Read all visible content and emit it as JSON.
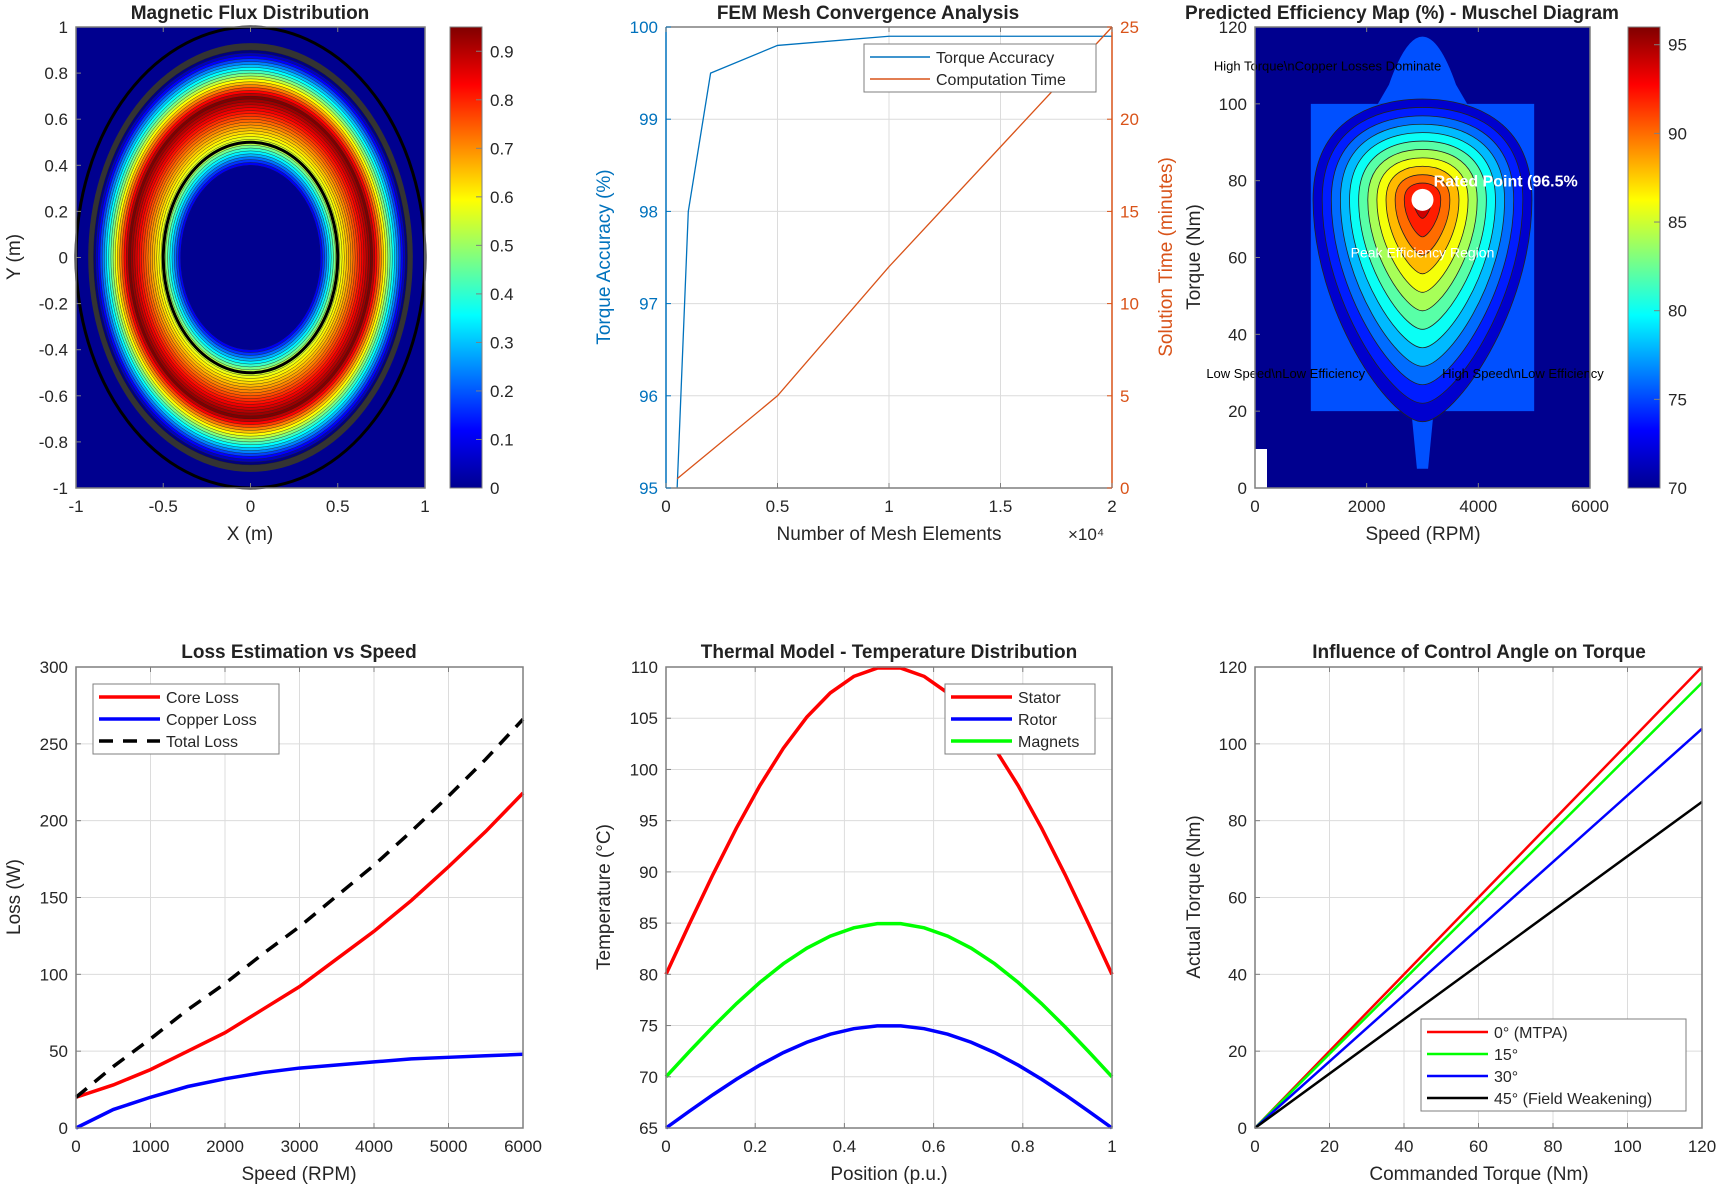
{
  "figure": {
    "panels": [
      {
        "id": "flux",
        "title": "Magnetic Flux Distribution"
      },
      {
        "id": "mesh",
        "title": "FEM Mesh Convergence Analysis"
      },
      {
        "id": "eff",
        "title": "Predicted Efficiency Map (%) - Muschel Diagram"
      },
      {
        "id": "loss",
        "title": "Loss Estimation vs Speed"
      },
      {
        "id": "thermal",
        "title": "Thermal Model - Temperature Distribution"
      },
      {
        "id": "ctrl",
        "title": "Influence of Control Angle on Torque"
      }
    ]
  },
  "chart_data": [
    {
      "type": "heatmap",
      "title": "Magnetic Flux Distribution",
      "xlabel": "X (m)",
      "ylabel": "Y (m)",
      "xlim": [
        -1,
        1
      ],
      "ylim": [
        -1,
        1
      ],
      "xticks": [
        "-1",
        "-0.5",
        "0",
        "0.5",
        "1"
      ],
      "yticks": [
        "-1",
        "-0.8",
        "-0.6",
        "-0.4",
        "-0.2",
        "0",
        "0.2",
        "0.4",
        "0.6",
        "0.8",
        "1"
      ],
      "colorbar": {
        "range": [
          0,
          0.95
        ],
        "ticks": [
          "0",
          "0.1",
          "0.2",
          "0.3",
          "0.4",
          "0.5",
          "0.6",
          "0.7",
          "0.8",
          "0.9"
        ],
        "colormap": "jet"
      },
      "description": "Annular flux ring peaking (~0.95) between r=0.5 and r≈0.9, zero inside r≈0.4 and outside r≈0.9",
      "overlay_circles_radius": [
        0.5,
        1.0
      ],
      "ring_inner_radius": 0.5,
      "ring_peak_radius": 0.7,
      "ring_outer_radius": 0.9
    },
    {
      "type": "line",
      "title": "FEM Mesh Convergence Analysis",
      "xlabel": "Number of Mesh Elements",
      "x_multiplier_label": "×10⁴",
      "ylabel_left": "Torque Accuracy (%)",
      "ylabel_right": "Solution Time (minutes)",
      "xlim": [
        0,
        20000
      ],
      "ylim_left": [
        95,
        100
      ],
      "ylim_right": [
        0,
        25
      ],
      "xticks": [
        "0",
        "0.5",
        "1",
        "1.5",
        "2"
      ],
      "yticks_left": [
        "95",
        "96",
        "97",
        "98",
        "99",
        "100"
      ],
      "yticks_right": [
        "0",
        "5",
        "10",
        "15",
        "20",
        "25"
      ],
      "x": [
        500,
        1000,
        2000,
        5000,
        10000,
        20000
      ],
      "series": [
        {
          "name": "Torque Accuracy",
          "axis": "left",
          "color": "#0072BD",
          "values": [
            95.0,
            98.0,
            99.5,
            99.8,
            99.9,
            99.9
          ]
        },
        {
          "name": "Computation Time",
          "axis": "right",
          "color": "#D95319",
          "values": [
            0.5,
            1.0,
            2.0,
            5.0,
            12.0,
            25.0
          ]
        }
      ],
      "legend": "top-right",
      "grid": true
    },
    {
      "type": "heatmap",
      "title": "Predicted Efficiency Map (%) - Muschel Diagram",
      "xlabel": "Speed (RPM)",
      "ylabel": "Torque (Nm)",
      "xlim": [
        0,
        6000
      ],
      "ylim": [
        0,
        120
      ],
      "xticks": [
        "0",
        "2000",
        "4000",
        "6000"
      ],
      "yticks": [
        "0",
        "20",
        "40",
        "60",
        "80",
        "100",
        "120"
      ],
      "colorbar": {
        "range": [
          70,
          96
        ],
        "ticks": [
          "70",
          "75",
          "80",
          "85",
          "90",
          "95"
        ],
        "colormap": "jet"
      },
      "peak": {
        "speed": 3000,
        "torque": 75,
        "efficiency": 96.5
      },
      "annotations": [
        {
          "text": "High Torque\\nCopper Losses Dominate",
          "speed": 1500,
          "torque": 110,
          "color": "#000000"
        },
        {
          "text": "Rated Point (96.5%",
          "speed": 3200,
          "torque": 80,
          "color": "#ffffff",
          "bold": true
        },
        {
          "text": "Peak Efficiency Region",
          "speed": 3000,
          "torque": 60,
          "color": "#ffffff"
        },
        {
          "text": "Low Speed\\nLow Efficiency",
          "speed": 500,
          "torque": 30,
          "color": "#000000"
        },
        {
          "text": "High Speed\\nLow Efficiency",
          "speed": 4500,
          "torque": 30,
          "color": "#000000"
        }
      ]
    },
    {
      "type": "line",
      "title": "Loss Estimation vs Speed",
      "xlabel": "Speed (RPM)",
      "ylabel": "Loss (W)",
      "xlim": [
        0,
        6000
      ],
      "ylim": [
        0,
        300
      ],
      "xticks": [
        "0",
        "1000",
        "2000",
        "3000",
        "4000",
        "5000",
        "6000"
      ],
      "yticks": [
        "0",
        "50",
        "100",
        "150",
        "200",
        "250",
        "300"
      ],
      "x": [
        0,
        500,
        1000,
        1500,
        2000,
        2500,
        3000,
        3500,
        4000,
        4500,
        5000,
        5500,
        6000
      ],
      "series": [
        {
          "name": "Core Loss",
          "color": "#FF0000",
          "style": "solid",
          "values": [
            20,
            28,
            38,
            50,
            62,
            77,
            92,
            110,
            128,
            148,
            170,
            193,
            218
          ]
        },
        {
          "name": "Copper Loss",
          "color": "#0000FF",
          "style": "solid",
          "values": [
            0,
            12,
            20,
            27,
            32,
            36,
            39,
            41,
            43,
            45,
            46,
            47,
            48
          ]
        },
        {
          "name": "Total Loss",
          "color": "#000000",
          "style": "dashed",
          "values": [
            20,
            40,
            58,
            77,
            94,
            113,
            131,
            151,
            171,
            193,
            216,
            240,
            266
          ]
        }
      ],
      "legend": "top-left",
      "grid": true
    },
    {
      "type": "line",
      "title": "Thermal Model - Temperature Distribution",
      "xlabel": "Position (p.u.)",
      "ylabel": "Temperature (°C)",
      "xlim": [
        0,
        1
      ],
      "ylim": [
        65,
        110
      ],
      "xticks": [
        "0",
        "0.2",
        "0.4",
        "0.6",
        "0.8",
        "1"
      ],
      "yticks": [
        "65",
        "70",
        "75",
        "80",
        "85",
        "90",
        "95",
        "100",
        "105",
        "110"
      ],
      "x_points": 20,
      "series": [
        {
          "name": "Stator",
          "color": "#FF0000",
          "base": 80,
          "amplitude": 30
        },
        {
          "name": "Rotor",
          "color": "#0000FF",
          "base": 65,
          "amplitude": 10
        },
        {
          "name": "Magnets",
          "color": "#00FF00",
          "base": 70,
          "amplitude": 15
        }
      ],
      "formula": "T = base + amplitude * sin(pi * x)",
      "legend": "top-right",
      "grid": true
    },
    {
      "type": "line",
      "title": "Influence of Control Angle on Torque",
      "xlabel": "Commanded Torque (Nm)",
      "ylabel": "Actual Torque (Nm)",
      "xlim": [
        0,
        120
      ],
      "ylim": [
        0,
        120
      ],
      "xticks": [
        "0",
        "20",
        "40",
        "60",
        "80",
        "100",
        "120"
      ],
      "yticks": [
        "0",
        "20",
        "40",
        "60",
        "80",
        "100",
        "120"
      ],
      "x": [
        0,
        120
      ],
      "series": [
        {
          "name": "0° (MTPA)",
          "color": "#FF0000",
          "values": [
            0,
            120
          ]
        },
        {
          "name": "15°",
          "color": "#00FF00",
          "values": [
            0,
            115.9
          ]
        },
        {
          "name": "30°",
          "color": "#0000FF",
          "values": [
            0,
            103.9
          ]
        },
        {
          "name": "45° (Field Weakening)",
          "color": "#000000",
          "values": [
            0,
            84.9
          ]
        }
      ],
      "legend": "bottom-right",
      "grid": true
    }
  ]
}
